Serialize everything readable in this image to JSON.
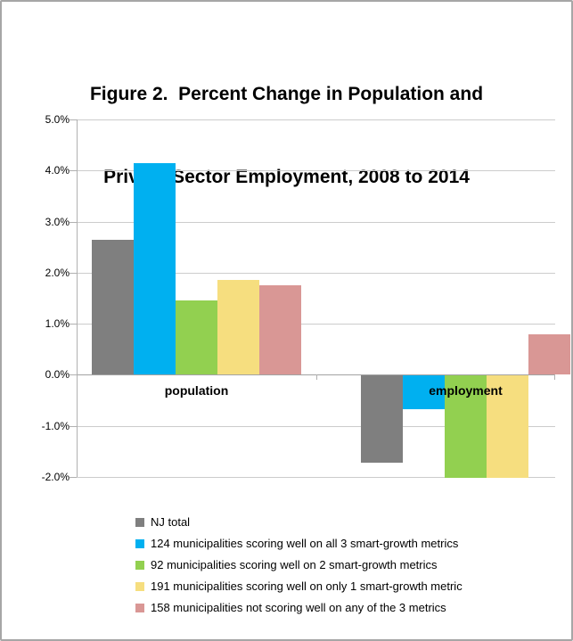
{
  "title": {
    "line1": "Figure 2.  Percent Change in Population and",
    "line2": "Private-Sector Employment, 2008 to 2014"
  },
  "chart_data": {
    "type": "bar",
    "title": "Figure 2.  Percent Change in Population and Private-Sector Employment, 2008 to 2014",
    "categories": [
      "population",
      "employment"
    ],
    "series": [
      {
        "name": "NJ total",
        "color": "#7f7f7f",
        "values": [
          2.65,
          -1.7
        ]
      },
      {
        "name": "124 municipalities scoring well on all 3 smart-growth metrics",
        "color": "#00b0f0",
        "values": [
          4.15,
          -0.65
        ]
      },
      {
        "name": "92 municipalities scoring well on 2 smart-growth metrics",
        "color": "#92d050",
        "values": [
          1.45,
          -2.0
        ]
      },
      {
        "name": "191 municipalities scoring well on only 1 smart-growth metric",
        "color": "#f6de7f",
        "values": [
          1.85,
          -2.0
        ]
      },
      {
        "name": "158 municipalities not scoring well on any of the 3 metrics",
        "color": "#d99795",
        "values": [
          1.75,
          0.8
        ]
      }
    ],
    "xlabel": "",
    "ylabel": "",
    "ylim": [
      -2.0,
      5.0
    ],
    "ytick_step": 1.0,
    "ytick_labels": [
      "5.0%",
      "4.0%",
      "3.0%",
      "2.0%",
      "1.0%",
      "0.0%",
      "-1.0%",
      "-2.0%"
    ],
    "grid": true,
    "legend_position": "bottom-left",
    "colors": {
      "gridline": "#cccccc",
      "zero_axis": "#a3a3a3",
      "axis": "#b0b0b0",
      "text": "#000000",
      "frame_border": "#a6a6a6"
    }
  }
}
